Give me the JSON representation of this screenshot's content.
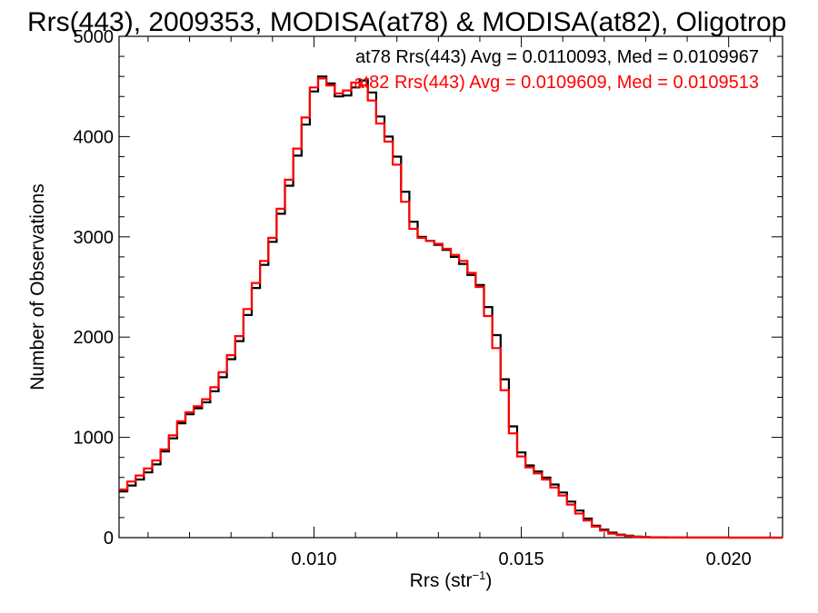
{
  "chart_data": {
    "type": "line",
    "title": "Rrs(443), 2009353, MODISA(at78) & MODISA(at82), Oligotrop",
    "xlabel": "Rrs (str",
    "xlabel_sup": "−1",
    "xlabel_close": ")",
    "ylabel": "Number of Observations",
    "xlim": [
      0.0053,
      0.0213
    ],
    "ylim": [
      0,
      5000
    ],
    "xticks": [
      0.01,
      0.015,
      0.02
    ],
    "xtick_labels": [
      "0.010",
      "0.015",
      "0.020"
    ],
    "yticks": [
      0,
      1000,
      2000,
      3000,
      4000,
      5000
    ],
    "ytick_labels": [
      "0",
      "1000",
      "2000",
      "3000",
      "4000",
      "5000"
    ],
    "grid": false,
    "step": true,
    "annotations": [
      "at78 Rrs(443) Avg = 0.0110093, Med = 0.0109967",
      "at82 Rrs(443) Avg = 0.0109609, Med = 0.0109513"
    ],
    "series": [
      {
        "color": "#000000",
        "x": [
          0.0053,
          0.0055,
          0.0057,
          0.0059,
          0.0061,
          0.0063,
          0.0065,
          0.0067,
          0.0069,
          0.0071,
          0.0073,
          0.0075,
          0.0077,
          0.0079,
          0.0081,
          0.0083,
          0.0085,
          0.0087,
          0.0089,
          0.0091,
          0.0093,
          0.0095,
          0.0097,
          0.0099,
          0.0101,
          0.0103,
          0.0105,
          0.0107,
          0.0109,
          0.0111,
          0.0113,
          0.0115,
          0.0117,
          0.0119,
          0.0121,
          0.0123,
          0.0125,
          0.0127,
          0.0129,
          0.0131,
          0.0133,
          0.0135,
          0.0137,
          0.0139,
          0.0141,
          0.0143,
          0.0145,
          0.0147,
          0.0149,
          0.0151,
          0.0153,
          0.0155,
          0.0157,
          0.0159,
          0.0161,
          0.0163,
          0.0165,
          0.0167,
          0.0169,
          0.0171,
          0.0173,
          0.0175,
          0.0177,
          0.0179,
          0.0181,
          0.0185,
          0.019,
          0.02,
          0.0213
        ],
        "values": [
          460,
          520,
          580,
          650,
          730,
          860,
          990,
          1140,
          1230,
          1290,
          1350,
          1460,
          1600,
          1780,
          1960,
          2220,
          2490,
          2720,
          2950,
          3230,
          3510,
          3810,
          4120,
          4450,
          4600,
          4530,
          4400,
          4410,
          4490,
          4560,
          4440,
          4200,
          4000,
          3800,
          3450,
          3150,
          3000,
          2960,
          2920,
          2870,
          2800,
          2730,
          2620,
          2520,
          2300,
          2020,
          1580,
          1110,
          850,
          720,
          660,
          600,
          530,
          450,
          360,
          270,
          190,
          120,
          80,
          50,
          30,
          20,
          10,
          5,
          3,
          2,
          1,
          0,
          0
        ]
      },
      {
        "color": "#ff0000",
        "x": [
          0.0053,
          0.0055,
          0.0057,
          0.0059,
          0.0061,
          0.0063,
          0.0065,
          0.0067,
          0.0069,
          0.0071,
          0.0073,
          0.0075,
          0.0077,
          0.0079,
          0.0081,
          0.0083,
          0.0085,
          0.0087,
          0.0089,
          0.0091,
          0.0093,
          0.0095,
          0.0097,
          0.0099,
          0.0101,
          0.0103,
          0.0105,
          0.0107,
          0.0109,
          0.0111,
          0.0113,
          0.0115,
          0.0117,
          0.0119,
          0.0121,
          0.0123,
          0.0125,
          0.0127,
          0.0129,
          0.0131,
          0.0133,
          0.0135,
          0.0137,
          0.0139,
          0.0141,
          0.0143,
          0.0145,
          0.0147,
          0.0149,
          0.0151,
          0.0153,
          0.0155,
          0.0157,
          0.0159,
          0.0161,
          0.0163,
          0.0165,
          0.0167,
          0.0169,
          0.0171,
          0.0173,
          0.0175,
          0.0177,
          0.0179,
          0.0181,
          0.0185,
          0.019,
          0.02,
          0.0213
        ],
        "values": [
          480,
          560,
          620,
          690,
          770,
          880,
          1020,
          1160,
          1250,
          1310,
          1380,
          1500,
          1650,
          1820,
          2010,
          2280,
          2540,
          2760,
          2990,
          3280,
          3570,
          3880,
          4190,
          4490,
          4580,
          4510,
          4430,
          4460,
          4540,
          4510,
          4360,
          4130,
          3950,
          3720,
          3350,
          3080,
          2990,
          2960,
          2930,
          2880,
          2820,
          2760,
          2640,
          2500,
          2210,
          1890,
          1470,
          1040,
          810,
          700,
          640,
          580,
          500,
          420,
          330,
          240,
          170,
          110,
          70,
          40,
          25,
          15,
          8,
          4,
          2,
          1,
          0,
          0,
          0
        ]
      }
    ]
  }
}
